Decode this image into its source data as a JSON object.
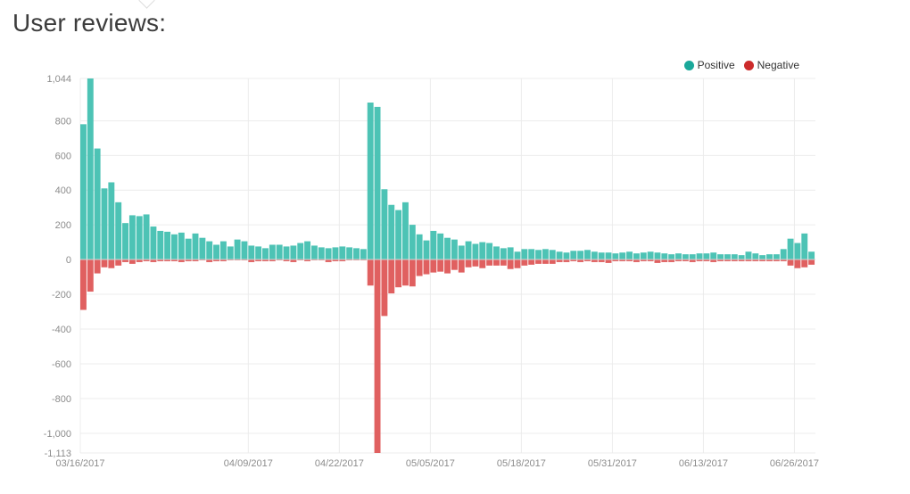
{
  "page": {
    "title": "User reviews:"
  },
  "legend": {
    "positive_label": "Positive",
    "negative_label": "Negative",
    "positive_color": "#1aa89a",
    "negative_color": "#cc2b2b"
  },
  "chart_data": {
    "type": "bar",
    "stacked_diverging": true,
    "ylim": [
      -1113,
      1044
    ],
    "y_ticks": [
      {
        "v": 1044,
        "label": "1,044"
      },
      {
        "v": 800,
        "label": "800"
      },
      {
        "v": 600,
        "label": "600"
      },
      {
        "v": 400,
        "label": "400"
      },
      {
        "v": 200,
        "label": "200"
      },
      {
        "v": 0,
        "label": "0"
      },
      {
        "v": -200,
        "label": "-200"
      },
      {
        "v": -400,
        "label": "-400"
      },
      {
        "v": -600,
        "label": "-600"
      },
      {
        "v": -800,
        "label": "-800"
      },
      {
        "v": -1000,
        "label": "-1,000"
      },
      {
        "v": -1113,
        "label": "-1,113"
      }
    ],
    "x_ticks": [
      {
        "i": 0,
        "label": "03/16/2017"
      },
      {
        "i": 24,
        "label": "04/09/2017"
      },
      {
        "i": 37,
        "label": "04/22/2017"
      },
      {
        "i": 50,
        "label": "05/05/2017"
      },
      {
        "i": 63,
        "label": "05/18/2017"
      },
      {
        "i": 76,
        "label": "05/31/2017"
      },
      {
        "i": 89,
        "label": "06/13/2017"
      },
      {
        "i": 102,
        "label": "06/26/2017"
      }
    ],
    "series": [
      {
        "name": "Positive",
        "values": [
          780,
          1044,
          640,
          410,
          445,
          330,
          210,
          255,
          250,
          260,
          190,
          165,
          160,
          145,
          155,
          120,
          150,
          125,
          105,
          85,
          105,
          75,
          115,
          105,
          80,
          75,
          65,
          85,
          85,
          75,
          80,
          95,
          105,
          80,
          70,
          65,
          70,
          75,
          70,
          65,
          60,
          905,
          880,
          405,
          315,
          285,
          330,
          200,
          145,
          110,
          165,
          150,
          125,
          115,
          80,
          105,
          90,
          100,
          95,
          75,
          65,
          70,
          45,
          60,
          60,
          55,
          60,
          55,
          45,
          40,
          50,
          50,
          55,
          45,
          40,
          40,
          35,
          40,
          45,
          35,
          40,
          45,
          40,
          35,
          30,
          35,
          30,
          30,
          35,
          35,
          40,
          30,
          30,
          30,
          25,
          45,
          35,
          25,
          30,
          30,
          60,
          120,
          95,
          150,
          45
        ],
        "color": "#4dc3b5"
      },
      {
        "name": "Negative",
        "values": [
          -290,
          -185,
          -80,
          -45,
          -50,
          -35,
          -15,
          -25,
          -15,
          -10,
          -15,
          -10,
          -10,
          -10,
          -15,
          -10,
          -10,
          -5,
          -15,
          -10,
          -10,
          -5,
          -5,
          -5,
          -15,
          -10,
          -10,
          -10,
          -5,
          -10,
          -15,
          -5,
          -10,
          -5,
          -5,
          -15,
          -10,
          -10,
          -5,
          -5,
          -5,
          -150,
          -1113,
          -325,
          -195,
          -160,
          -150,
          -155,
          -95,
          -85,
          -75,
          -70,
          -80,
          -60,
          -75,
          -45,
          -40,
          -50,
          -35,
          -35,
          -35,
          -55,
          -50,
          -35,
          -30,
          -25,
          -25,
          -25,
          -15,
          -15,
          -10,
          -15,
          -10,
          -15,
          -15,
          -20,
          -10,
          -10,
          -10,
          -15,
          -10,
          -10,
          -20,
          -15,
          -15,
          -10,
          -10,
          -15,
          -10,
          -10,
          -15,
          -10,
          -10,
          -10,
          -10,
          -10,
          -10,
          -10,
          -10,
          -10,
          -10,
          -35,
          -50,
          -45,
          -30
        ]
      }
    ]
  }
}
